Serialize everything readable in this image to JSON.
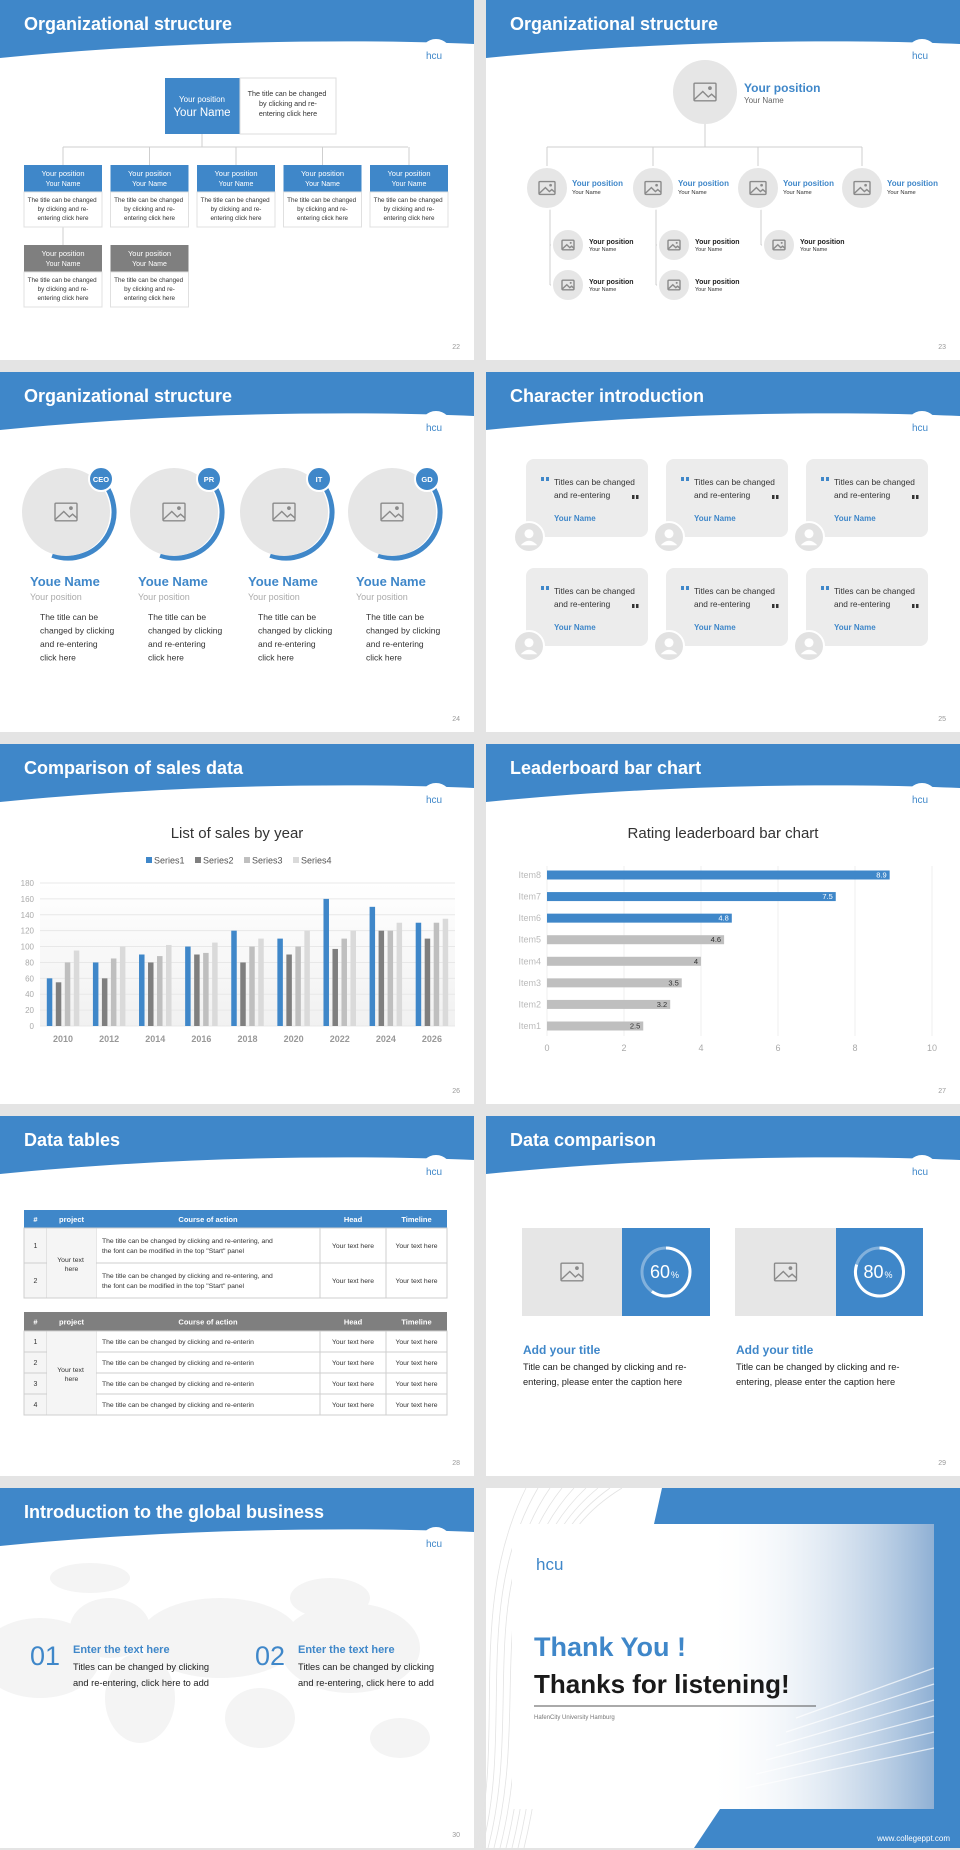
{
  "logo": "hcu",
  "slides": [
    {
      "title": "Organizational structure",
      "page": 22,
      "top": {
        "position": "Your position",
        "name": "Your Name",
        "text": "The title can be changed by clicking and re-entering click here"
      },
      "members": [
        {
          "position": "Your position",
          "name": "Your Name",
          "text": "The title can be changed by clicking and re-entering click here"
        },
        {
          "position": "Your position",
          "name": "Your Name",
          "text": "The title can be changed by clicking and re-entering click here"
        },
        {
          "position": "Your position",
          "name": "Your Name",
          "text": "The title can be changed by clicking and re-entering click here"
        },
        {
          "position": "Your position",
          "name": "Your Name",
          "text": "The title can be changed by clicking and re-entering click here"
        },
        {
          "position": "Your position",
          "name": "Your Name",
          "text": "The title can be changed by clicking and re-entering click here"
        },
        {
          "position": "Your position",
          "name": "Your Name",
          "text": "The title can be changed by clicking and re-entering click here"
        },
        {
          "position": "Your position",
          "name": "Your Name",
          "text": "The title can be changed by clicking and re-entering click here"
        }
      ]
    },
    {
      "title": "Organizational structure",
      "page": 23,
      "top": {
        "position": "Your position",
        "name": "Your Name"
      },
      "level2": [
        {
          "position": "Your position",
          "name": "Your Name"
        },
        {
          "position": "Your position",
          "name": "Your Name"
        },
        {
          "position": "Your position",
          "name": "Your Name"
        },
        {
          "position": "Your position",
          "name": "Your Name"
        }
      ],
      "level3": [
        {
          "position": "Your position",
          "name": "Your Name"
        },
        {
          "position": "Your position",
          "name": "Your Name"
        },
        {
          "position": "Your position",
          "name": "Your Name"
        },
        {
          "position": "Your position",
          "name": "Your Name"
        },
        {
          "position": "Your position",
          "name": "Your Name"
        }
      ]
    },
    {
      "title": "Organizational structure",
      "page": 24,
      "people": [
        {
          "badge": "CEO",
          "name": "Youe Name",
          "position": "Your position",
          "text": "The title can be changed by clicking and re-entering click here"
        },
        {
          "badge": "PR",
          "name": "Youe Name",
          "position": "Your position",
          "text": "The title can be changed by clicking and re-entering click here"
        },
        {
          "badge": "IT",
          "name": "Youe Name",
          "position": "Your position",
          "text": "The title can be changed by clicking and re-entering click here"
        },
        {
          "badge": "GD",
          "name": "Youe Name",
          "position": "Your position",
          "text": "The title can be changed by clicking and re-entering click here"
        }
      ]
    },
    {
      "title": "Character introduction",
      "page": 25,
      "quotes": [
        {
          "text": "Titles can be changed and re-entering",
          "name": "Your Name"
        },
        {
          "text": "Titles can be changed and re-entering",
          "name": "Your Name"
        },
        {
          "text": "Titles can be changed and re-entering",
          "name": "Your Name"
        },
        {
          "text": "Titles can be changed and re-entering",
          "name": "Your Name"
        },
        {
          "text": "Titles can be changed and re-entering",
          "name": "Your Name"
        },
        {
          "text": "Titles can be changed and re-entering",
          "name": "Your Name"
        }
      ]
    },
    {
      "title": "Comparison of sales data",
      "page": 26
    },
    {
      "title": "Leaderboard bar chart",
      "page": 27
    },
    {
      "title": "Data tables",
      "page": 28,
      "tables": [
        {
          "header": [
            "#",
            "project",
            "Course of action",
            "Head",
            "Timeline"
          ],
          "project": "Your text here",
          "rows": [
            [
              1,
              "The title can be changed by clicking and re-entering, and the font can be modified in the top \"Start\" panel",
              "Your text here",
              "Your text here"
            ],
            [
              2,
              "The title can be changed by clicking and re-entering, and the font can be modified in the top \"Start\" panel",
              "Your text here",
              "Your text here"
            ]
          ]
        },
        {
          "header": [
            "#",
            "project",
            "Course of action",
            "Head",
            "Timeline"
          ],
          "project": "Your text here",
          "rows": [
            [
              1,
              "The title can be changed by clicking and re-enterin",
              "Your text here",
              "Your text here"
            ],
            [
              2,
              "The title can be changed by clicking and re-enterin",
              "Your text here",
              "Your text here"
            ],
            [
              3,
              "The title can be changed by clicking and re-enterin",
              "Your text here",
              "Your text here"
            ],
            [
              4,
              "The title can be changed by clicking and re-enterin",
              "Your text here",
              "Your text here"
            ]
          ]
        }
      ]
    },
    {
      "title": "Data comparison",
      "page": 29,
      "cards": [
        {
          "value": 60,
          "unit": "%",
          "title": "Add your title",
          "text": "Title can be changed by clicking and re-entering, please enter the caption here"
        },
        {
          "value": 80,
          "unit": "%",
          "title": "Add your title",
          "text": "Title can be changed by clicking and re-entering, please enter the caption here"
        }
      ]
    },
    {
      "title": "Introduction to the global business",
      "page": 30,
      "items": [
        {
          "number": "01",
          "title": "Enter the text here",
          "text": "Titles can be changed by clicking and re-entering, click here to add"
        },
        {
          "number": "02",
          "title": "Enter the text here",
          "text": "Titles can be changed by clicking and re-entering, click here to add"
        }
      ]
    },
    {
      "thanks": "Thank You !",
      "message": "Thanks for listening!",
      "university": "HafenCity University Hamburg",
      "url": "www.collegeppt.com"
    }
  ],
  "chart_data": [
    {
      "type": "bar",
      "title": "List of sales by year",
      "categories": [
        "2010",
        "2012",
        "2014",
        "2016",
        "2018",
        "2020",
        "2022",
        "2024",
        "2026"
      ],
      "series": [
        {
          "name": "Series1",
          "color": "#3f87c9",
          "values": [
            60,
            80,
            90,
            100,
            120,
            110,
            160,
            150,
            130
          ]
        },
        {
          "name": "Series2",
          "color": "#7f7f7f",
          "values": [
            55,
            60,
            80,
            90,
            80,
            90,
            97,
            120,
            110
          ]
        },
        {
          "name": "Series3",
          "color": "#bfbfbf",
          "values": [
            80,
            85,
            88,
            92,
            100,
            100,
            110,
            120,
            130
          ]
        },
        {
          "name": "Series4",
          "color": "#dadada",
          "values": [
            95,
            100,
            102,
            105,
            110,
            120,
            120,
            130,
            135
          ]
        }
      ],
      "ylim": [
        0,
        180
      ],
      "yticks": [
        0,
        20,
        40,
        60,
        80,
        100,
        120,
        140,
        160,
        180
      ],
      "grid": true,
      "legend": "top"
    },
    {
      "type": "barh",
      "title": "Rating leaderboard bar chart",
      "categories": [
        "Item1",
        "Item2",
        "Item3",
        "Item4",
        "Item5",
        "Item6",
        "Item7",
        "Item8"
      ],
      "values": [
        2.5,
        3.2,
        3.5,
        4,
        4.6,
        4.8,
        7.5,
        8.9
      ],
      "colors": [
        "#bfbfbf",
        "#bfbfbf",
        "#bfbfbf",
        "#bfbfbf",
        "#bfbfbf",
        "#3f87c9",
        "#3f87c9",
        "#3f87c9"
      ],
      "xlim": [
        0,
        10
      ],
      "xticks": [
        0,
        2,
        4,
        6,
        8,
        10
      ],
      "grid": true
    }
  ]
}
